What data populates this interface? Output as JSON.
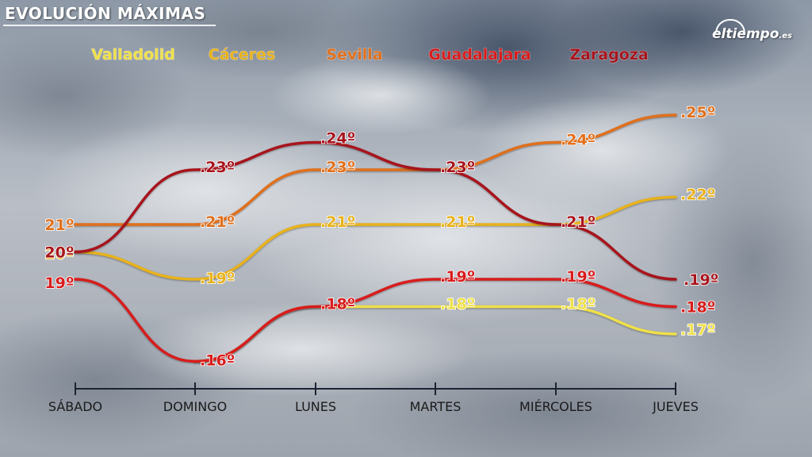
{
  "header": {
    "title": "EVOLUCIÓN MÁXIMAS"
  },
  "logo": {
    "text": "eltiempo",
    "suffix": ".es"
  },
  "colors": {
    "axis": "#1c2333",
    "Valladolid": "#efe04a",
    "Cáceres": "#e8b21c",
    "Sevilla": "#e0701c",
    "Guadalajara": "#d81c1c",
    "Zaragoza": "#a8141c"
  },
  "chart_data": {
    "type": "line",
    "title": "EVOLUCIÓN MÁXIMAS",
    "xlabel": "",
    "ylabel": "",
    "categories": [
      "SÁBADO",
      "DOMINGO",
      "LUNES",
      "MARTES",
      "MIÉRCOLES",
      "JUEVES"
    ],
    "unit": "º",
    "grid": false,
    "legend_position": "top",
    "series": [
      {
        "name": "Valladolid",
        "values": [
          null,
          16,
          18,
          18,
          18,
          17
        ]
      },
      {
        "name": "Cáceres",
        "values": [
          20,
          19,
          21,
          21,
          21,
          22
        ]
      },
      {
        "name": "Sevilla",
        "values": [
          21,
          21,
          23,
          23,
          24,
          25
        ]
      },
      {
        "name": "Guadalajara",
        "values": [
          19,
          16,
          18,
          19,
          19,
          18
        ]
      },
      {
        "name": "Zaragoza",
        "values": [
          20,
          23,
          24,
          23,
          21,
          19
        ]
      }
    ]
  }
}
